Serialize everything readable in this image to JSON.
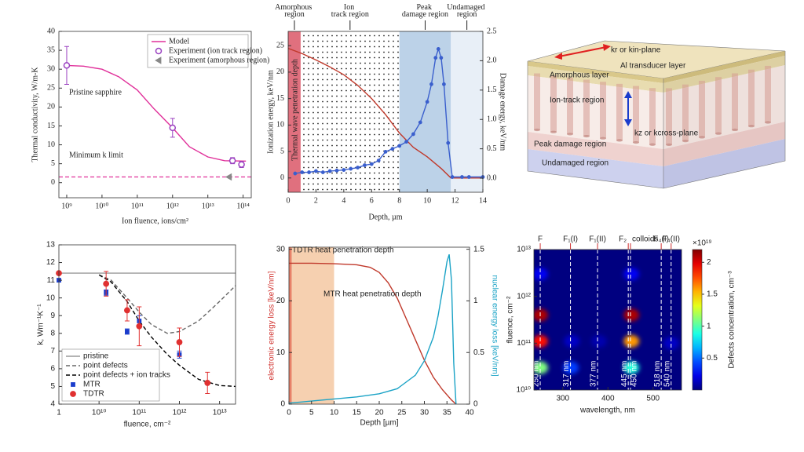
{
  "chart_data": [
    {
      "type": "line",
      "xlog": true,
      "xlim": [
        600000000.0,
        170000000000000.0
      ],
      "ylim": [
        -4,
        40
      ],
      "xticks": [
        {
          "value": 1000000000.0,
          "label": "10⁹"
        },
        {
          "value": 10000000000.0,
          "label": "10¹⁰"
        },
        {
          "value": 100000000000.0,
          "label": "10¹¹"
        },
        {
          "value": 1000000000000.0,
          "label": "10¹²"
        },
        {
          "value": 10000000000000.0,
          "label": "10¹³"
        },
        {
          "value": 100000000000000.0,
          "label": "10¹⁴"
        }
      ],
      "yticks": [
        0,
        5,
        10,
        15,
        20,
        25,
        30,
        35,
        40
      ],
      "xlabel": "Ion fluence, ions/cm²",
      "ylabel": "Thermal conductivity, W/m-K",
      "legend": "upper right",
      "hlines": [
        {
          "value": 1.5,
          "color": "#e0309a"
        }
      ],
      "annotations": [
        "Pristine sapphire",
        "Minimum k limit"
      ],
      "series": [
        {
          "name": "Model",
          "color": "#e0309a",
          "line": "solid",
          "x": [
            1000000000.0,
            3000000000.0,
            10000000000.0,
            30000000000.0,
            100000000000.0,
            300000000000.0,
            1000000000000.0,
            3000000000000.0,
            10000000000000.0,
            30000000000000.0,
            120000000000000.0
          ],
          "values": [
            31,
            30.8,
            30,
            28,
            24.5,
            19.5,
            14.5,
            9.5,
            6.8,
            5.8,
            5.7
          ]
        },
        {
          "name": "Experiment (ion track region)",
          "color": "#9a40c0",
          "marker": "o",
          "hollow": true,
          "x": [
            1000000000.0,
            1000000000000.0,
            50000000000000.0,
            90000000000000.0
          ],
          "values": [
            31,
            14.5,
            5.8,
            4.8
          ],
          "errors": [
            5,
            2.5,
            0.8,
            0.8
          ]
        },
        {
          "name": "Experiment (amorphous region)",
          "color": "#888888",
          "marker": "<",
          "x": [
            40000000000000.0
          ],
          "values": [
            1.5
          ]
        }
      ]
    },
    {
      "type": "line",
      "xlim": [
        0,
        14
      ],
      "ylim": [
        -2.7,
        27.7
      ],
      "y2lim": [
        -0.24,
        2.5
      ],
      "xticks": [
        0,
        2,
        4,
        6,
        8,
        10,
        12,
        14
      ],
      "yticks": [
        0,
        5,
        10,
        15,
        20,
        25
      ],
      "y2ticks": [
        {
          "value": 0,
          "label": "0.0"
        },
        0.5,
        {
          "value": 1,
          "label": "1.0"
        },
        1.5,
        {
          "value": 2,
          "label": "2.0"
        },
        2.5
      ],
      "xlabel": "Depth, µm",
      "ylabel": "Ionization energy, keV/nm",
      "y2label": "Damage energy, keV/nm",
      "annotations": [
        "Thermal wave penetration depth"
      ],
      "regions": [
        {
          "label": "Amorphous region",
          "start": 0,
          "end": 0.9,
          "color": "#e0707e"
        },
        {
          "label": "Ion track region",
          "start": 0.9,
          "end": 8,
          "color": "#ffffff",
          "pattern": "dots"
        },
        {
          "label": "Peak damage region",
          "start": 8,
          "end": 11.7,
          "color": "#bcd2e8"
        },
        {
          "label": "Undamaged region",
          "start": 11.7,
          "end": 14,
          "color": "#e8eff7"
        }
      ],
      "series": [
        {
          "color": "#c0392b",
          "line": "solid",
          "x": [
            0,
            1,
            2,
            3,
            4,
            5,
            6,
            7,
            8,
            9,
            10,
            11,
            11.7,
            12,
            14
          ],
          "values": [
            24.5,
            23.5,
            22.3,
            21,
            19.5,
            17.5,
            15,
            12,
            8.5,
            5.8,
            4,
            1.8,
            0,
            0,
            0
          ]
        },
        {
          "color": "#3a5fcd",
          "line": "solid",
          "marker": "dot",
          "axis": "y2",
          "x": [
            0.5,
            1,
            1.5,
            2,
            2.5,
            3,
            3.5,
            4,
            4.5,
            5,
            5.5,
            6,
            6.5,
            7,
            7.5,
            8,
            8.5,
            9,
            9.5,
            10,
            10.3,
            10.6,
            10.8,
            11,
            11.2,
            11.5,
            11.8,
            12.5,
            13,
            14
          ],
          "values": [
            0.08,
            0.1,
            0.1,
            0.12,
            0.1,
            0.12,
            0.13,
            0.14,
            0.16,
            0.18,
            0.22,
            0.24,
            0.3,
            0.45,
            0.5,
            0.55,
            0.62,
            0.75,
            0.95,
            1.3,
            1.6,
            2.05,
            2.2,
            2.05,
            1.6,
            0.6,
            0.02,
            0.02,
            0.02,
            0.02
          ]
        }
      ]
    },
    {
      "type": "line",
      "xlog": true,
      "x_break": [
        1,
        10000000000.0
      ],
      "xlim": [
        1,
        25000000000000.0
      ],
      "ylim": [
        4,
        13
      ],
      "xticks": [
        1,
        {
          "value": 10000000000.0,
          "label": "10¹⁰"
        },
        {
          "value": 100000000000.0,
          "label": "10¹¹"
        },
        {
          "value": 1000000000000.0,
          "label": "10¹²"
        },
        {
          "value": 10000000000000.0,
          "label": "10¹³"
        }
      ],
      "yticks": [
        4,
        5,
        6,
        7,
        8,
        9,
        10,
        11,
        12,
        13
      ],
      "xlabel": "fluence, cm⁻²",
      "ylabel": "k, Wm⁻¹K⁻¹",
      "legend": "lower left",
      "series": [
        {
          "name": "pristine",
          "color": "#9a9a9a",
          "line": "solid",
          "x": [
            1,
            25000000000000.0
          ],
          "values": [
            11.4,
            11.4
          ]
        },
        {
          "name": "point defects",
          "color": "#666666",
          "line": "dashed",
          "x": [
            10000000000.0,
            20000000000.0,
            50000000000.0,
            100000000000.0,
            200000000000.0,
            500000000000.0,
            1000000000000.0,
            3000000000000.0,
            10000000000000.0,
            25000000000000.0
          ],
          "values": [
            11.3,
            11,
            10,
            9.2,
            8.5,
            8,
            8.1,
            8.7,
            9.8,
            10.7
          ]
        },
        {
          "name": "point defects + ion tracks",
          "color": "#000000",
          "line": "dashed",
          "x": [
            10000000000.0,
            20000000000.0,
            50000000000.0,
            100000000000.0,
            200000000000.0,
            500000000000.0,
            1000000000000.0,
            3000000000000.0,
            10000000000000.0,
            25000000000000.0
          ],
          "values": [
            11.3,
            10.9,
            9.8,
            8.7,
            7.8,
            6.8,
            6.2,
            5.4,
            5.05,
            5
          ]
        },
        {
          "name": "MTR",
          "color": "#1a3ccc",
          "marker": "s",
          "x": [
            1,
            15000000000.0,
            50000000000.0,
            100000000000.0,
            1000000000000.0
          ],
          "values": [
            11,
            10.3,
            8.1,
            8.7,
            6.8
          ],
          "errors": [
            0.1,
            0.15,
            0.15,
            0.3,
            0.2
          ]
        },
        {
          "name": "TDTR",
          "color": "#e03030",
          "marker": "o",
          "x": [
            1,
            15000000000.0,
            50000000000.0,
            100000000000.0,
            1000000000000.0,
            5000000000000.0
          ],
          "values": [
            11.4,
            10.8,
            9.3,
            8.4,
            7.5,
            5.2
          ],
          "errors": [
            0.05,
            0.7,
            0.6,
            1.1,
            0.8,
            0.6
          ]
        }
      ]
    },
    {
      "type": "line",
      "xlim": [
        0,
        40
      ],
      "ylim": [
        0,
        30.4
      ],
      "y2lim": [
        0,
        1.52
      ],
      "xticks": [
        0,
        5,
        10,
        15,
        20,
        25,
        30,
        35,
        40
      ],
      "yticks": [
        0,
        10,
        20,
        30
      ],
      "y2ticks": [
        0,
        0.5,
        1,
        1.5
      ],
      "xlabel": "Depth [µm]",
      "ylabel": "electronic energy loss [keV/nm]",
      "y2label": "nuclear energy loss [keV/nm]",
      "ylabel_color": "#d0312d",
      "y2label_color": "#1ba3c6",
      "annotations": [
        "TDTR heat penetration depth",
        "MTR heat penetration depth"
      ],
      "regions": [
        {
          "start": 0,
          "end": 10,
          "color": "#f6d0b0"
        },
        {
          "start": 0,
          "end": 0.6,
          "color": "#e8826a"
        }
      ],
      "series": [
        {
          "color": "#c0392b",
          "line": "solid",
          "x": [
            0,
            5,
            10,
            15,
            18,
            20,
            22,
            24,
            26,
            28,
            30,
            32,
            34,
            36,
            37
          ],
          "values": [
            27.3,
            27.3,
            27.2,
            27,
            26.5,
            25.5,
            23.5,
            20.5,
            16.5,
            12.5,
            8.5,
            5.2,
            2.8,
            0.8,
            0
          ]
        },
        {
          "color": "#1ba3c6",
          "line": "solid",
          "axis": "y2",
          "x": [
            0,
            5,
            10,
            15,
            20,
            24,
            28,
            30,
            32,
            33,
            34,
            35,
            35.5,
            36,
            36.5,
            37
          ],
          "values": [
            0.01,
            0.03,
            0.05,
            0.07,
            0.1,
            0.15,
            0.28,
            0.42,
            0.65,
            0.85,
            1.1,
            1.38,
            1.45,
            1.2,
            0.4,
            0
          ]
        }
      ]
    },
    {
      "type": "heatmap",
      "ylog": true,
      "xlim": [
        236,
        563
      ],
      "ylim": [
        10000000000.0,
        10000000000000.0
      ],
      "xticks": [
        300,
        400,
        500
      ],
      "yticks": [
        {
          "value": 10000000000.0,
          "label": "10¹⁰"
        },
        {
          "value": 100000000000.0,
          "label": "10¹¹"
        },
        {
          "value": 1000000000000.0,
          "label": "10¹²"
        },
        {
          "value": 10000000000000.0,
          "label": "10¹³"
        }
      ],
      "xlabel": "wavelength, nm",
      "ylabel": "fluence, cm⁻²",
      "clim": [
        0,
        2.2
      ],
      "colorbar_ticks": [
        0.5,
        1,
        1.5,
        2
      ],
      "colorbar_label": "Defects concentration, cm⁻³",
      "colorbar_multiplier": "×10¹⁹",
      "spots": {
        "x": [
          250,
          250,
          250,
          250,
          452,
          452,
          452,
          452,
          318,
          320,
          380,
          540
        ],
        "y": [
          400000000000.0,
          110000000000.0,
          30000000000.0,
          3000000000000.0,
          400000000000.0,
          110000000000.0,
          30000000000.0,
          3000000000000.0,
          30000000000.0,
          110000000000.0,
          110000000000.0,
          100000000000.0
        ],
        "values": [
          2.1,
          1.9,
          1.1,
          0.25,
          2.1,
          1.6,
          0.9,
          0.25,
          0.4,
          0.15,
          0.1,
          0.15
        ]
      },
      "lines": [
        {
          "value": 250,
          "label": "250 nm",
          "top": "F"
        },
        {
          "value": 317,
          "label": "317 nm",
          "top": "F₁(I)"
        },
        {
          "value": 377,
          "label": "377 nm",
          "top": "F₁(II)"
        },
        {
          "value": 445,
          "label": "445 nm",
          "top": "F₂"
        },
        {
          "value": 450,
          "label": "450 nm",
          "top": "colloids"
        },
        {
          "value": 518,
          "label": "518 nm",
          "top": "F₄(I)"
        },
        {
          "value": 540,
          "label": "540 nm",
          "top": "F₄(II)"
        }
      ]
    }
  ],
  "diagram": {
    "in_plane": "kr or kin-plane",
    "transducer": "Al transducer layer",
    "amorphous": "Amorphous layer",
    "ion_track": "Ion-track region",
    "cross_plane": "kz or kcross-plane",
    "peak_damage": "Peak damage region",
    "undamaged": "Undamaged region"
  }
}
